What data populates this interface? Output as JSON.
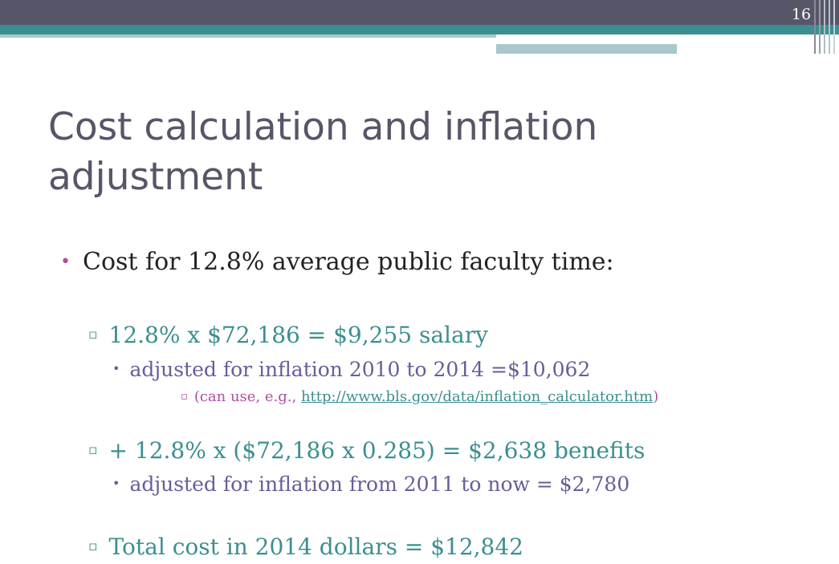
{
  "slide": {
    "page_number": "16",
    "title_line1": "Cost calculation and inflation",
    "title_line2": "adjustment"
  },
  "colors": {
    "header_dark": "#575668",
    "header_teal": "#3c8f90",
    "accent_magenta": "#b04d9f",
    "level3_purple": "#6a5c9a"
  },
  "bullets": {
    "main": "Cost for 12.8% average public faculty time:",
    "salary": "12.8% x $72,186 = $9,255 salary",
    "salary_adjust": "adjusted for inflation 2010 to 2014 =$10,062",
    "note_prefix": "(can use, e.g., ",
    "note_link": "http://www.bls.gov/data/inflation_calculator.htm",
    "note_suffix": ")",
    "benefits": "+ 12.8% x ($72,186 x 0.285) = $2,638 benefits",
    "benefits_adjust": "adjusted for inflation from 2011 to now = $2,780",
    "total": "Total cost in 2014 dollars = $12,842"
  },
  "glyphs": {
    "level1": "•",
    "level2": "▫",
    "level3": "•",
    "level4": "▫"
  }
}
